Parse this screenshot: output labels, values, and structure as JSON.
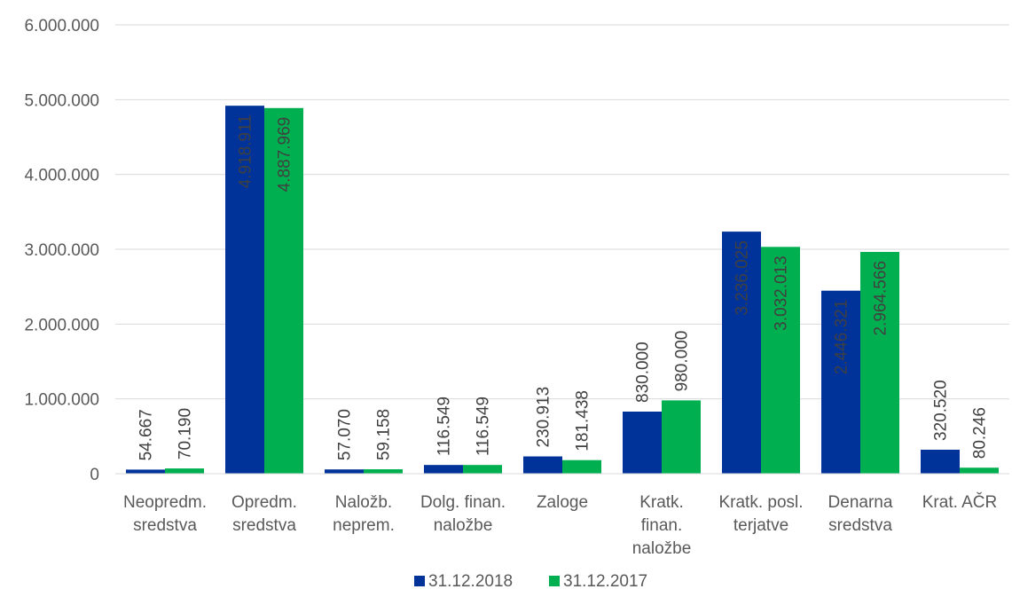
{
  "chart_data": {
    "type": "bar",
    "title": "",
    "xlabel": "",
    "ylabel": "",
    "ylim": [
      0,
      6000000
    ],
    "y_ticks": [
      {
        "value": 0,
        "label": "0"
      },
      {
        "value": 1000000,
        "label": "1.000.000"
      },
      {
        "value": 2000000,
        "label": "2.000.000"
      },
      {
        "value": 3000000,
        "label": "3.000.000"
      },
      {
        "value": 4000000,
        "label": "4.000.000"
      },
      {
        "value": 5000000,
        "label": "5.000.000"
      },
      {
        "value": 6000000,
        "label": "6.000.000"
      }
    ],
    "grid": true,
    "legend_position": "bottom",
    "categories": [
      [
        "Neopredm.",
        "sredstva"
      ],
      [
        "Opredm.",
        "sredstva"
      ],
      [
        "Naložb.",
        "neprem."
      ],
      [
        "Dolg. finan.",
        "naložbe"
      ],
      [
        "Zaloge"
      ],
      [
        "Kratk.",
        "finan.",
        "naložbe"
      ],
      [
        "Kratk. posl.",
        "terjatve"
      ],
      [
        "Denarna",
        "sredstva"
      ],
      [
        "Krat. AČR"
      ]
    ],
    "series": [
      {
        "name": "31.12.2018",
        "color": "#003399",
        "values": [
          54667,
          4918911,
          57070,
          116549,
          230913,
          830000,
          3236025,
          2446321,
          320520
        ],
        "labels": [
          "54.667",
          "4.918.911",
          "57.070",
          "116.549",
          "230.913",
          "830.000",
          "3.236.025",
          "2.446.321",
          "320.520"
        ]
      },
      {
        "name": "31.12.2017",
        "color": "#00b050",
        "values": [
          70190,
          4887969,
          59158,
          116549,
          181438,
          980000,
          3032013,
          2964566,
          80246
        ],
        "labels": [
          "70.190",
          "4.887.969",
          "59.158",
          "116.549",
          "181.438",
          "980.000",
          "3.032.013",
          "2.964.566",
          "80.246"
        ]
      }
    ]
  }
}
